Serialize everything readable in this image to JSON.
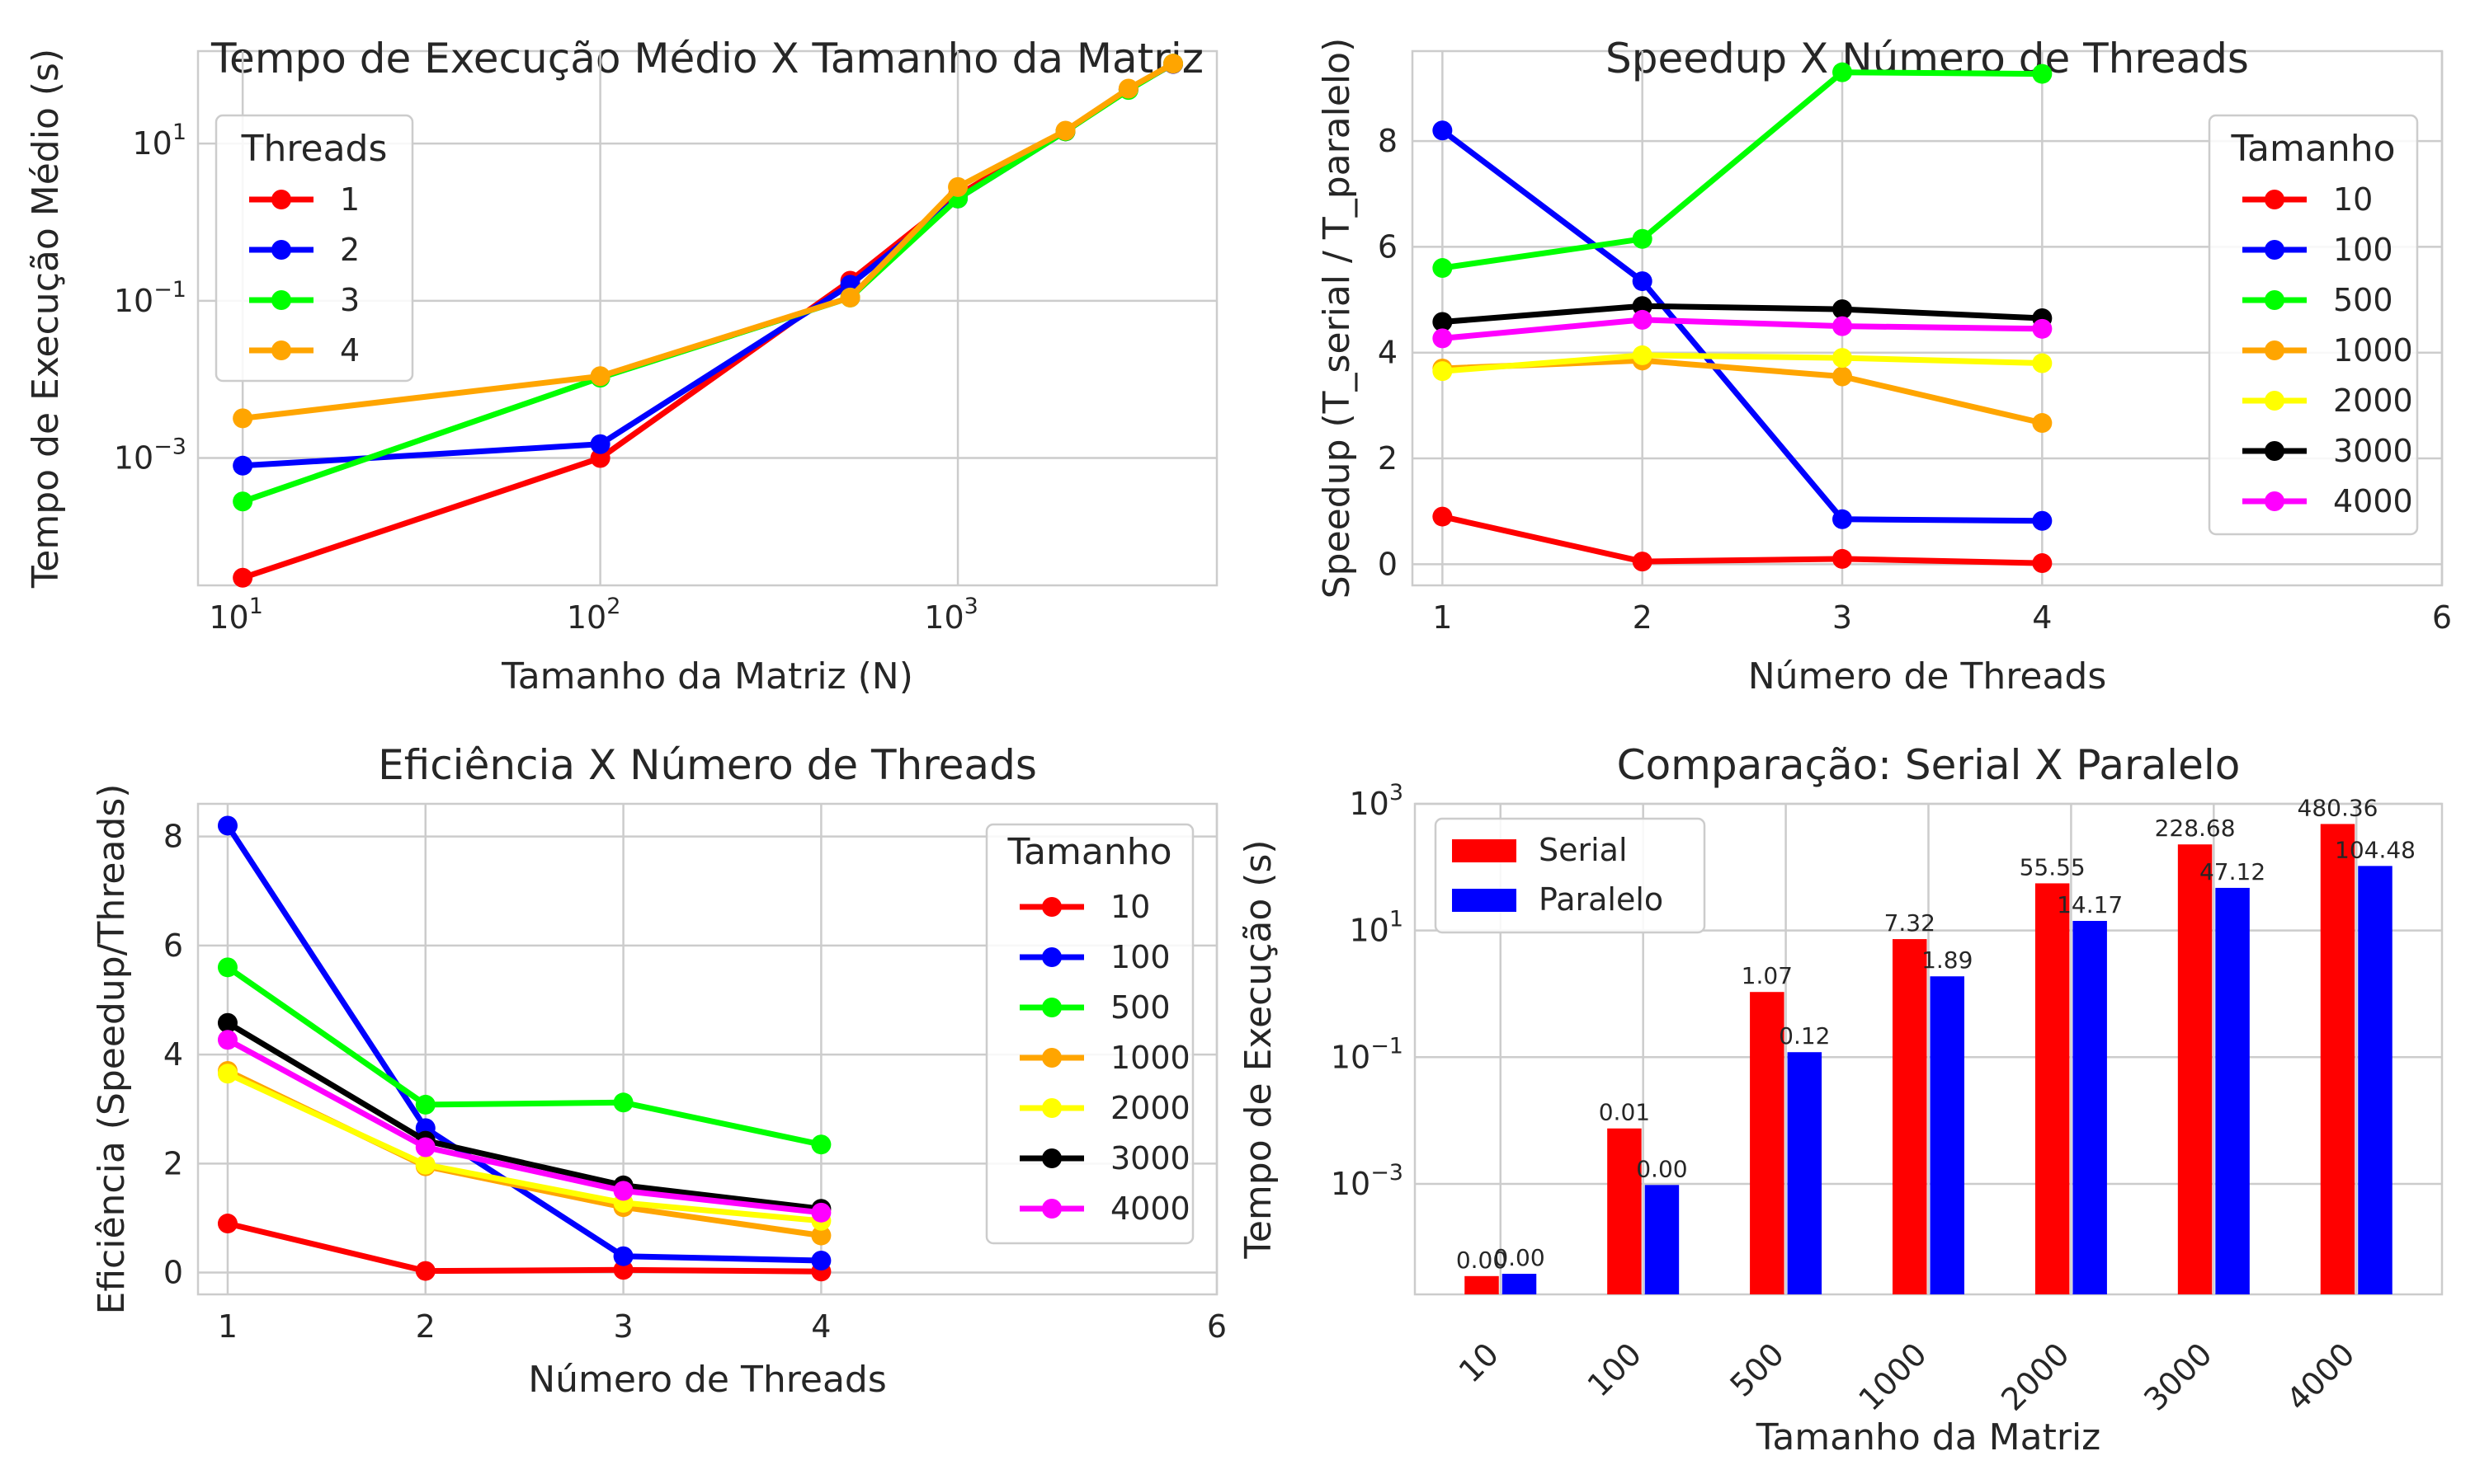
{
  "chart_data": [
    {
      "type": "line",
      "title": "Tempo de Execução Médio X Tamanho da Matriz",
      "xlabel": "Tamanho da Matriz (N)",
      "ylabel": "Tempo de Execução Médio (s)",
      "xscale": "log",
      "yscale": "log",
      "xlim": [
        7.5,
        5300
      ],
      "ylim": [
        2.4e-05,
        150
      ],
      "xticks": [
        10,
        100,
        1000
      ],
      "yticks": [
        0.001,
        0.1,
        10
      ],
      "x": [
        10,
        100,
        500,
        1000,
        2000,
        3000,
        4000
      ],
      "legend_title": "Threads",
      "legend_position": "upper-left",
      "grid": true,
      "series": [
        {
          "name": "1",
          "color": "#ff0000",
          "values": [
            3e-05,
            0.001,
            0.18,
            2.2,
            14.3,
            49,
            103
          ]
        },
        {
          "name": "2",
          "color": "#0000ff",
          "values": [
            0.0008,
            0.0015,
            0.16,
            2.0,
            14.3,
            49,
            103
          ]
        },
        {
          "name": "3",
          "color": "#00ff00",
          "values": [
            0.00028,
            0.0105,
            0.11,
            2.0,
            14.3,
            48,
            104
          ]
        },
        {
          "name": "4",
          "color": "#ffa500",
          "values": [
            0.0032,
            0.011,
            0.11,
            2.8,
            14.6,
            50,
            104
          ]
        }
      ]
    },
    {
      "type": "line",
      "title": "Speedup X Número de Threads",
      "xlabel": "Número de Threads",
      "ylabel": "Speedup (T_serial / T_paralelo)",
      "xlim": [
        0.85,
        6
      ],
      "ylim": [
        -0.4,
        9.7
      ],
      "xticks": [
        1,
        2,
        3,
        4,
        6
      ],
      "yticks": [
        0,
        2,
        4,
        6,
        8
      ],
      "x": [
        1,
        2,
        3,
        4
      ],
      "legend_title": "Tamanho",
      "legend_position": "upper-right",
      "grid": true,
      "series": [
        {
          "name": "10",
          "color": "#ff0000",
          "values": [
            0.9,
            0.05,
            0.1,
            0.02
          ]
        },
        {
          "name": "100",
          "color": "#0000ff",
          "values": [
            8.2,
            5.35,
            0.85,
            0.82
          ]
        },
        {
          "name": "500",
          "color": "#00ff00",
          "values": [
            5.6,
            6.15,
            9.3,
            9.27
          ]
        },
        {
          "name": "1000",
          "color": "#ffa500",
          "values": [
            3.7,
            3.85,
            3.55,
            2.67
          ]
        },
        {
          "name": "2000",
          "color": "#ffff00",
          "values": [
            3.65,
            3.95,
            3.9,
            3.8
          ]
        },
        {
          "name": "3000",
          "color": "#000000",
          "values": [
            4.58,
            4.88,
            4.82,
            4.65
          ]
        },
        {
          "name": "4000",
          "color": "#ff00ff",
          "values": [
            4.27,
            4.62,
            4.5,
            4.45
          ]
        }
      ]
    },
    {
      "type": "line",
      "title": "Eficiência X Número de Threads",
      "xlabel": "Número de Threads",
      "ylabel": "Eficiência (Speedup/Threads)",
      "xlim": [
        0.85,
        6
      ],
      "ylim": [
        -0.4,
        8.6
      ],
      "xticks": [
        1,
        2,
        3,
        4,
        6
      ],
      "yticks": [
        0,
        2,
        4,
        6,
        8
      ],
      "x": [
        1,
        2,
        3,
        4
      ],
      "legend_title": "Tamanho",
      "legend_position": "upper-right",
      "grid": true,
      "series": [
        {
          "name": "10",
          "color": "#ff0000",
          "values": [
            0.9,
            0.03,
            0.05,
            0.02
          ]
        },
        {
          "name": "100",
          "color": "#0000ff",
          "values": [
            8.2,
            2.65,
            0.3,
            0.22
          ]
        },
        {
          "name": "500",
          "color": "#00ff00",
          "values": [
            5.6,
            3.08,
            3.12,
            2.35
          ]
        },
        {
          "name": "1000",
          "color": "#ffa500",
          "values": [
            3.7,
            1.95,
            1.2,
            0.68
          ]
        },
        {
          "name": "2000",
          "color": "#ffff00",
          "values": [
            3.65,
            1.98,
            1.28,
            0.95
          ]
        },
        {
          "name": "3000",
          "color": "#000000",
          "values": [
            4.58,
            2.42,
            1.6,
            1.17
          ]
        },
        {
          "name": "4000",
          "color": "#ff00ff",
          "values": [
            4.27,
            2.3,
            1.5,
            1.1
          ]
        }
      ]
    },
    {
      "type": "bar",
      "title": "Comparação: Serial X Paralelo",
      "xlabel": "Tamanho da Matriz",
      "ylabel": "Tempo de Execução (s)",
      "yscale": "log",
      "ylim": [
        1.8e-05,
        1000
      ],
      "yticks": [
        0.001,
        0.1,
        10,
        1000
      ],
      "categories": [
        "10",
        "100",
        "500",
        "1000",
        "2000",
        "3000",
        "4000"
      ],
      "legend_position": "upper-left",
      "grid": true,
      "series": [
        {
          "name": "Serial",
          "color": "#ff0000",
          "values": [
            3.5e-05,
            0.0075,
            1.07,
            7.32,
            55.55,
            228.68,
            480.36
          ],
          "labels": [
            "0.00",
            "0.01",
            "1.07",
            "7.32",
            "55.55",
            "228.68",
            "480.36"
          ]
        },
        {
          "name": "Paralelo",
          "color": "#0000ff",
          "values": [
            3.8e-05,
            0.00096,
            0.12,
            1.89,
            14.17,
            47.12,
            104.48
          ],
          "labels": [
            "0.00",
            "0.00",
            "0.12",
            "1.89",
            "14.17",
            "47.12",
            "104.48"
          ]
        }
      ]
    }
  ]
}
